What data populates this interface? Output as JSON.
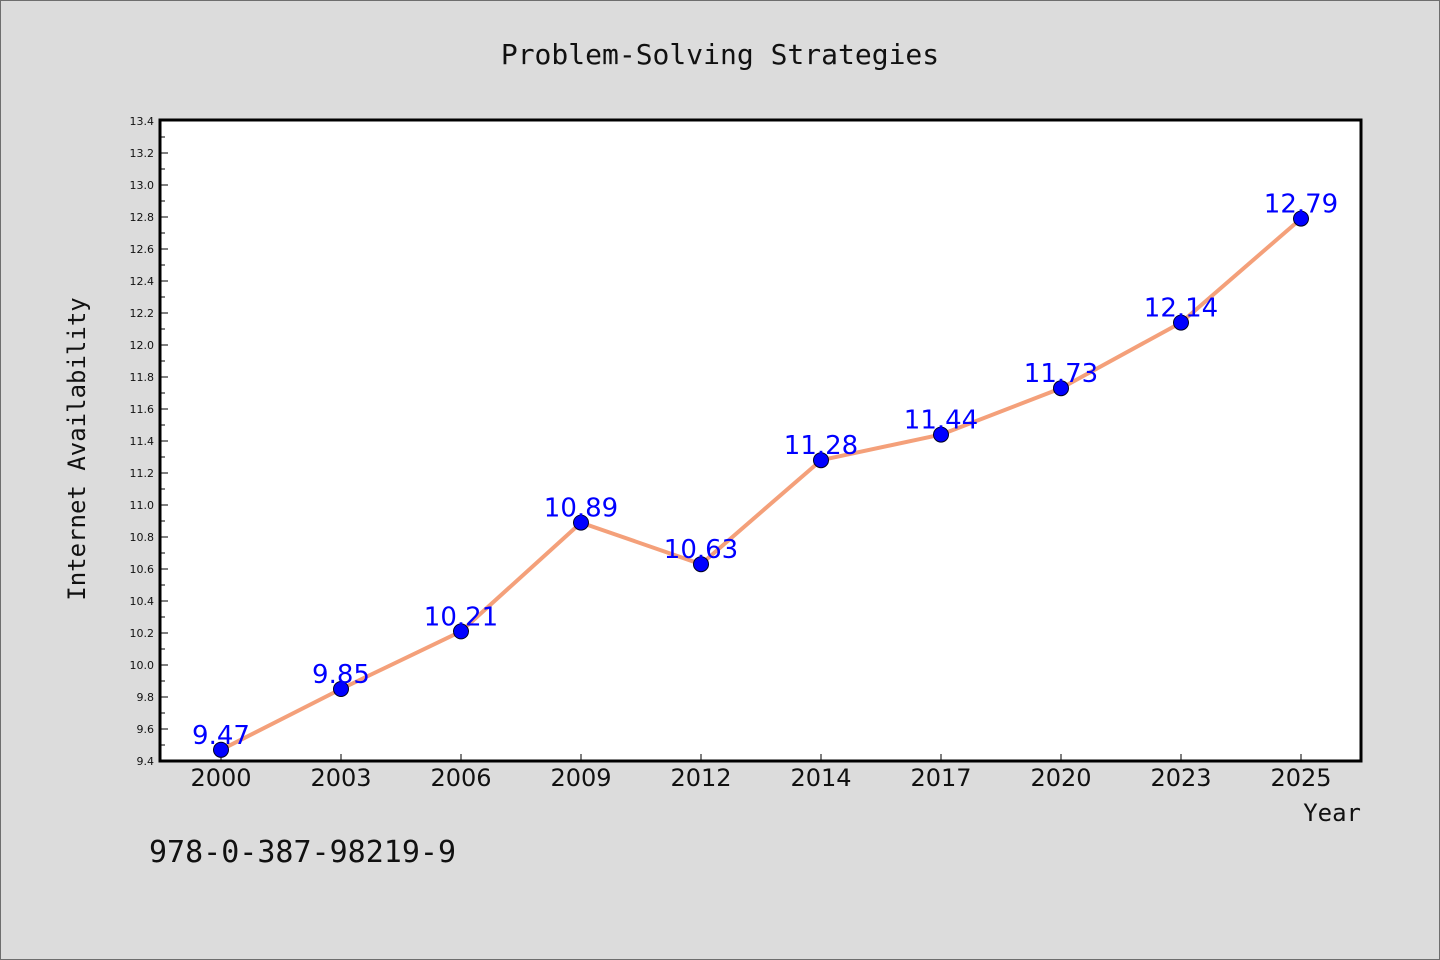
{
  "chart_data": {
    "type": "line",
    "title": "Problem-Solving Strategies",
    "xlabel": "Year",
    "ylabel": "Internet Availability",
    "categories": [
      "2000",
      "2003",
      "2006",
      "2009",
      "2012",
      "2014",
      "2017",
      "2020",
      "2023",
      "2025"
    ],
    "series": [
      {
        "values": [
          9.47,
          9.85,
          10.21,
          10.89,
          10.63,
          11.28,
          11.44,
          11.73,
          12.14,
          12.79
        ],
        "data_labels": [
          "9.47",
          "9.85",
          "10.21",
          "10.89",
          "10.63",
          "11.28",
          "11.44",
          "11.73",
          "12.14",
          "12.79"
        ],
        "line_color": "#f4a07a",
        "marker_color": "#0000ff"
      }
    ],
    "ylim": [
      9.4,
      13.4
    ],
    "yticks": [
      9.4,
      9.6,
      9.8,
      10.0,
      10.2,
      10.4,
      10.6,
      10.8,
      11.0,
      11.2,
      11.4,
      11.6,
      11.8,
      12.0,
      12.2,
      12.4,
      12.6,
      12.8,
      13.0,
      13.2,
      13.4
    ],
    "ytick_labels": [
      "9.4",
      "9.6",
      "9.8",
      "10.0",
      "10.2",
      "10.4",
      "10.6",
      "10.8",
      "11.0",
      "11.2",
      "11.4",
      "11.6",
      "11.8",
      "12.0",
      "12.2",
      "12.4",
      "12.6",
      "12.8",
      "13.0",
      "13.2",
      "13.4"
    ],
    "grid": false,
    "legend": "none"
  },
  "annotation": {
    "isbn": "978-0-387-98219-9"
  },
  "colors": {
    "background": "#dcdcdc",
    "plot_background": "#ffffff",
    "line": "#f4a07a",
    "marker": "#0000ff",
    "data_label": "#0000ff"
  }
}
